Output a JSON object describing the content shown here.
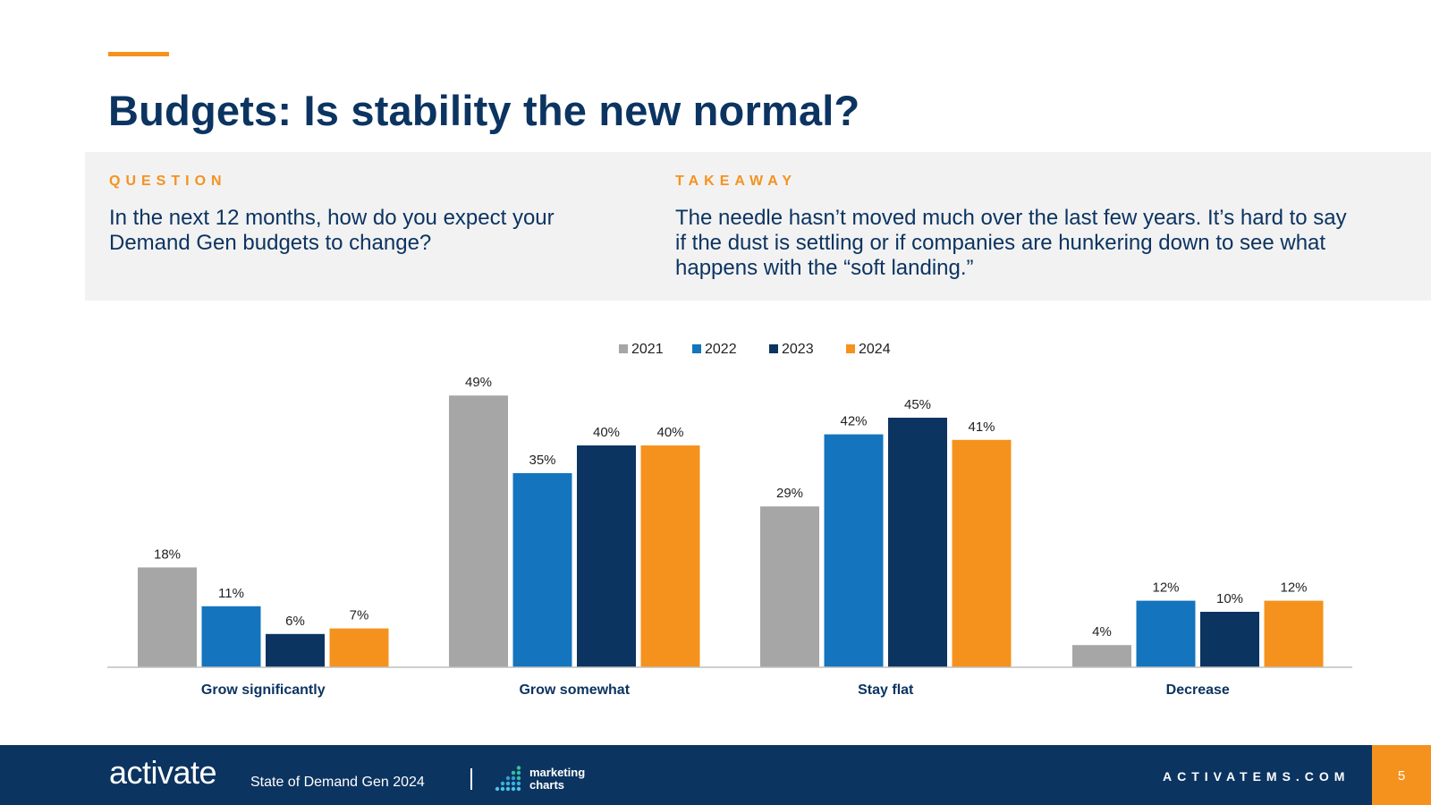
{
  "title": "Budgets: Is stability the new normal?",
  "question": {
    "label": "QUESTION",
    "text": "In the next 12 months, how do you expect your Demand Gen budgets to change?"
  },
  "takeaway": {
    "label": "TAKEAWAY",
    "text": "The needle hasn’t moved much over the last few years. It’s hard to say if the dust is settling or if companies are hunkering down to see what happens with the “soft landing.”"
  },
  "colors": {
    "accent": "#f5921e",
    "navy": "#0c3461",
    "panel": "#f2f2f2"
  },
  "chart_data": {
    "type": "bar",
    "categories": [
      "Grow significantly",
      "Grow somewhat",
      "Stay flat",
      "Decrease"
    ],
    "series": [
      {
        "name": "2021",
        "color": "#a6a6a6",
        "values": [
          18,
          49,
          29,
          4
        ],
        "labels": [
          "18%",
          "49%",
          "29%",
          "4%"
        ]
      },
      {
        "name": "2022",
        "color": "#1474bd",
        "values": [
          11,
          35,
          42,
          12
        ],
        "labels": [
          "11%",
          "35%",
          "42%",
          "12%"
        ]
      },
      {
        "name": "2023",
        "color": "#0c3461",
        "values": [
          6,
          40,
          45,
          10
        ],
        "labels": [
          "6%",
          "40%",
          "45%",
          "10%"
        ]
      },
      {
        "name": "2024",
        "color": "#f5921e",
        "values": [
          7,
          40,
          41,
          12
        ],
        "labels": [
          "7%",
          "40%",
          "41%",
          "12%"
        ]
      }
    ],
    "ylim": [
      0,
      55
    ],
    "grid": false,
    "legend": "top-center"
  },
  "footer": {
    "logo": "activate",
    "subtitle": "State of Demand Gen 2024",
    "partner_line1": "marketing",
    "partner_line2": "charts",
    "site": "ACTIVATEMS.COM",
    "page": "5"
  }
}
